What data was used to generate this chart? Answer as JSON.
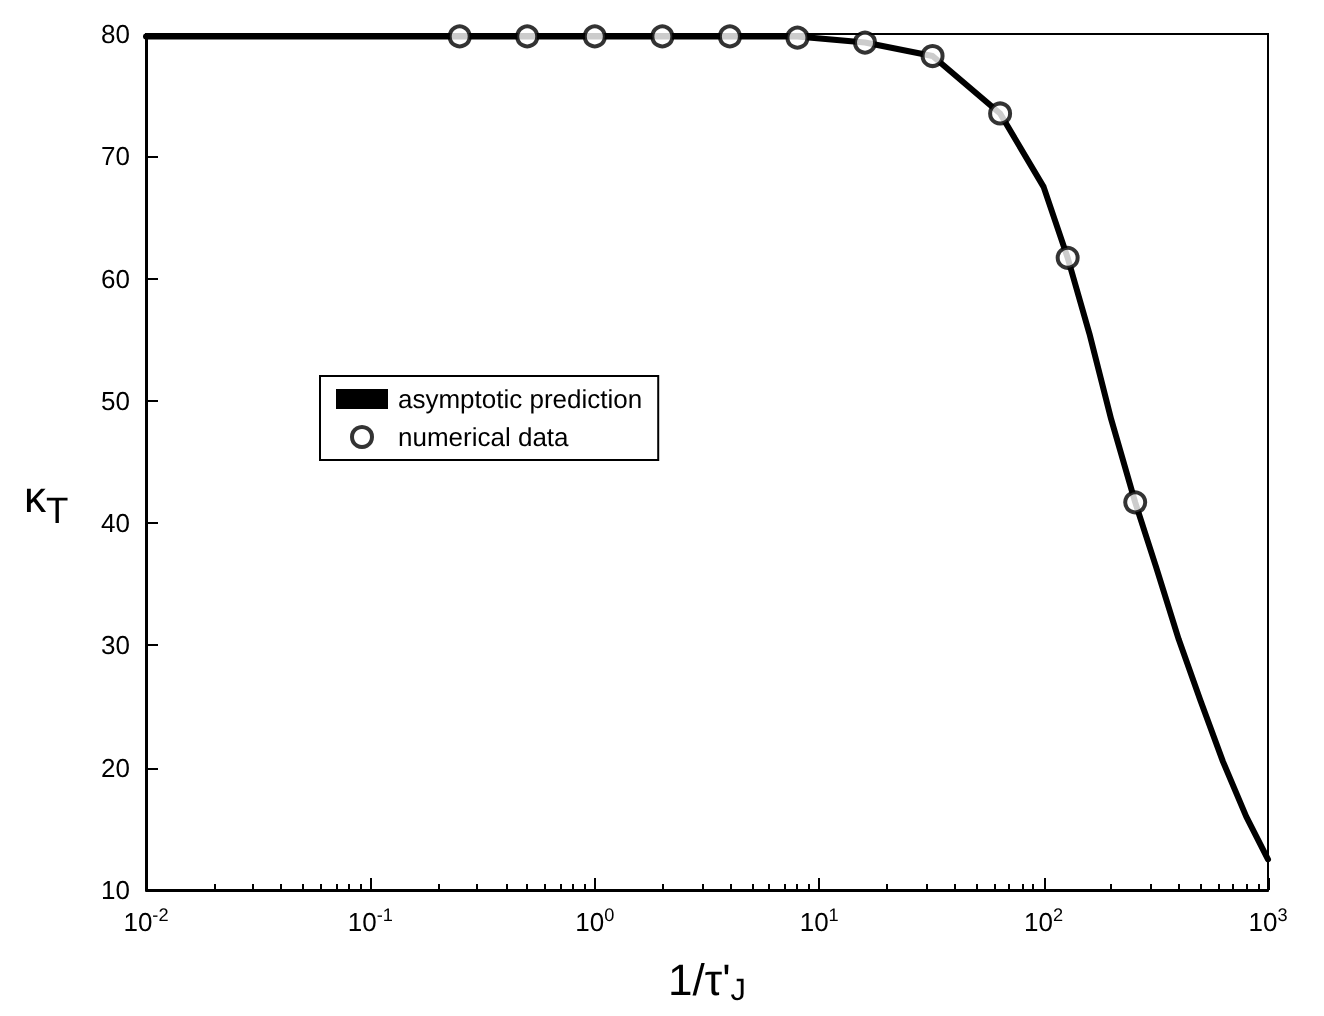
{
  "chart_data": {
    "type": "line",
    "xlabel": "1/τ'$_{J}$",
    "ylabel": "κ$_{T}$",
    "log": "x",
    "grid": false,
    "legend": "center left",
    "xlim": [
      0.01,
      1000
    ],
    "xticks": [
      {
        "value": 0.01,
        "label": "10$^{-2}$"
      },
      {
        "value": 0.1,
        "label": "10$^{-1}$"
      },
      {
        "value": 1,
        "label": "10$^{0}$"
      },
      {
        "value": 10,
        "label": "10$^{1}$"
      },
      {
        "value": 100,
        "label": "10$^{2}$"
      },
      {
        "value": 1000,
        "label": "10$^{3}$"
      }
    ],
    "ylim": [
      10,
      80
    ],
    "yticks": [
      10,
      20,
      30,
      40,
      50,
      60,
      70,
      80
    ],
    "series": [
      {
        "name": "asymptotic prediction",
        "color": "#000000",
        "marker": "none",
        "line_style": "solid",
        "x": [
          0.01,
          0.1,
          1,
          8,
          16,
          32,
          64,
          100,
          128,
          160,
          200,
          256,
          316,
          400,
          500,
          630,
          800,
          1000
        ],
        "values": [
          79.8,
          79.8,
          79.8,
          79.8,
          79.3,
          78.2,
          73.5,
          67.5,
          61.7,
          55.5,
          48.5,
          41.7,
          36.5,
          30.5,
          25.5,
          20.5,
          16,
          12.5
        ]
      },
      {
        "name": "numerical data",
        "type": "scatter",
        "color": "#000000",
        "marker": "circle",
        "x": [
          0.25,
          0.5,
          1,
          2,
          4,
          8,
          16,
          32,
          64,
          128,
          256
        ],
        "values": [
          79.8,
          79.8,
          79.8,
          79.8,
          79.8,
          79.7,
          79.3,
          78.2,
          73.5,
          61.7,
          41.7
        ]
      }
    ]
  }
}
